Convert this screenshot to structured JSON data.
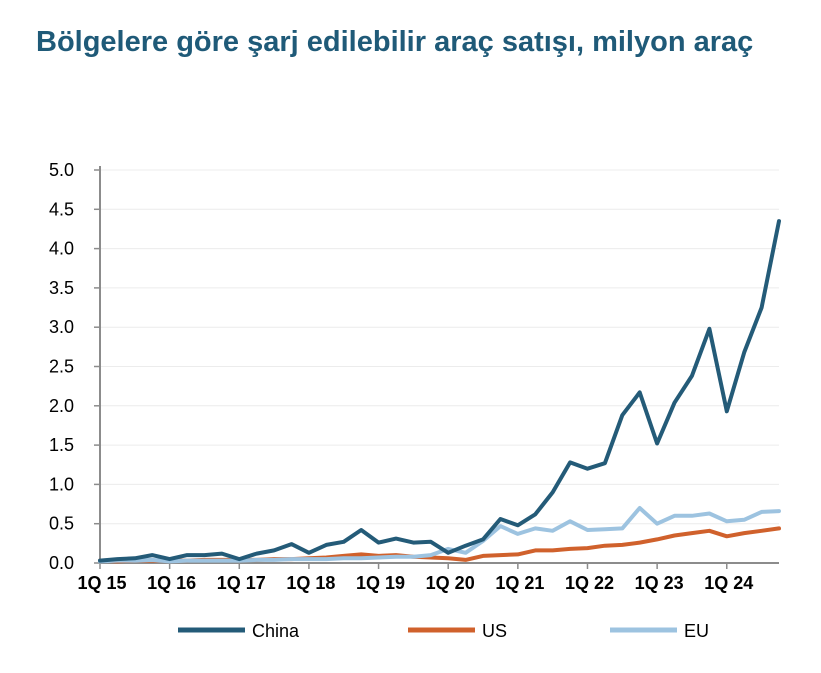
{
  "chart_data": {
    "type": "line",
    "title": "Bölgelere göre şarj edilebilir araç satışı, milyon araç",
    "xlabel": "",
    "ylabel": "",
    "ylim": [
      0,
      5
    ],
    "yticks": [
      "0.0",
      "0.5",
      "1.0",
      "1.5",
      "2.0",
      "2.5",
      "3.0",
      "3.5",
      "4.0",
      "4.5",
      "5.0"
    ],
    "xtick_labels": [
      "1Q 15",
      "1Q 16",
      "1Q 17",
      "1Q 18",
      "1Q 19",
      "1Q 20",
      "1Q 21",
      "1Q 22",
      "1Q 23",
      "1Q 24"
    ],
    "x_quarters": 40,
    "grid": true,
    "legend_position": "bottom",
    "series": [
      {
        "name": "China",
        "color": "#245b78",
        "values": [
          0.03,
          0.05,
          0.06,
          0.1,
          0.05,
          0.1,
          0.1,
          0.12,
          0.05,
          0.12,
          0.16,
          0.24,
          0.13,
          0.23,
          0.27,
          0.42,
          0.26,
          0.31,
          0.26,
          0.27,
          0.13,
          0.22,
          0.3,
          0.56,
          0.48,
          0.62,
          0.9,
          1.28,
          1.2,
          1.27,
          1.88,
          2.17,
          1.52,
          2.04,
          2.38,
          2.98,
          1.93,
          2.68,
          3.25,
          4.35
        ]
      },
      {
        "name": "US",
        "color": "#d0612c",
        "values": [
          0.03,
          0.02,
          0.03,
          0.03,
          0.03,
          0.03,
          0.04,
          0.04,
          0.04,
          0.04,
          0.05,
          0.05,
          0.06,
          0.07,
          0.09,
          0.11,
          0.09,
          0.1,
          0.08,
          0.07,
          0.06,
          0.04,
          0.09,
          0.1,
          0.11,
          0.16,
          0.16,
          0.18,
          0.19,
          0.22,
          0.23,
          0.26,
          0.3,
          0.35,
          0.38,
          0.41,
          0.34,
          0.38,
          0.41,
          0.44
        ]
      },
      {
        "name": "EU",
        "color": "#9dc3e0",
        "values": [
          0.02,
          0.03,
          0.03,
          0.04,
          0.02,
          0.03,
          0.03,
          0.03,
          0.03,
          0.04,
          0.04,
          0.05,
          0.05,
          0.05,
          0.06,
          0.06,
          0.07,
          0.08,
          0.08,
          0.1,
          0.18,
          0.13,
          0.28,
          0.47,
          0.37,
          0.44,
          0.41,
          0.53,
          0.42,
          0.43,
          0.44,
          0.7,
          0.5,
          0.6,
          0.6,
          0.63,
          0.53,
          0.55,
          0.65,
          0.66
        ]
      }
    ]
  }
}
